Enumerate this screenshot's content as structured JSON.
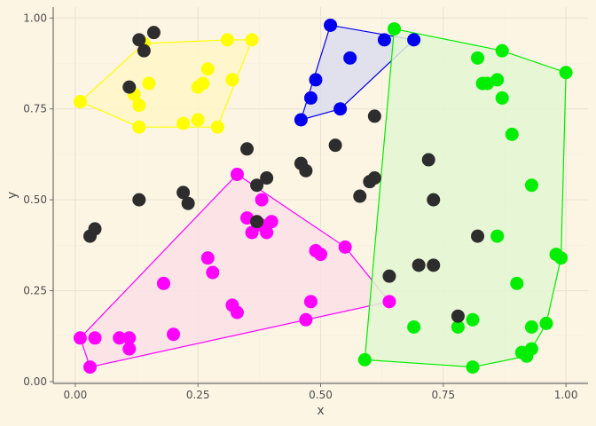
{
  "chart_data": {
    "type": "scatter",
    "title": "",
    "xlabel": "x",
    "ylabel": "y",
    "xlim": [
      -0.045,
      1.045
    ],
    "ylim": [
      -0.005,
      1.03
    ],
    "x_ticks": [
      0,
      0.25,
      0.5,
      0.75,
      1
    ],
    "x_tick_labels": [
      "0.00",
      "0.25",
      "0.50",
      "0.75",
      "1.00"
    ],
    "y_ticks": [
      0,
      0.25,
      0.5,
      0.75,
      1
    ],
    "y_tick_labels": [
      "0.00",
      "0.25",
      "0.50",
      "0.75",
      "1.00"
    ],
    "grid": true,
    "legend": "none",
    "colors": {
      "panel_background": "#fdf5e4",
      "grid_major": "#ebe3d2",
      "grid_minor": "#f5edde",
      "axis_line": "#6e6e6e",
      "text": "#4d4d4d"
    },
    "series": [
      {
        "color": "#ffff00",
        "fill": "#fff6c8",
        "hull": true,
        "points": [
          [
            0.01,
            0.77
          ],
          [
            0.14,
            0.93
          ],
          [
            0.12,
            0.79
          ],
          [
            0.13,
            0.76
          ],
          [
            0.13,
            0.7
          ],
          [
            0.15,
            0.82
          ],
          [
            0.22,
            0.71
          ],
          [
            0.25,
            0.72
          ],
          [
            0.25,
            0.81
          ],
          [
            0.26,
            0.82
          ],
          [
            0.27,
            0.86
          ],
          [
            0.29,
            0.7
          ],
          [
            0.31,
            0.94
          ],
          [
            0.32,
            0.83
          ],
          [
            0.36,
            0.94
          ]
        ]
      },
      {
        "color": "#0000ee",
        "fill": "#dcdcee",
        "hull": true,
        "points": [
          [
            0.46,
            0.72
          ],
          [
            0.48,
            0.78
          ],
          [
            0.49,
            0.83
          ],
          [
            0.52,
            0.98
          ],
          [
            0.54,
            0.75
          ],
          [
            0.56,
            0.89
          ],
          [
            0.63,
            0.94
          ],
          [
            0.69,
            0.94
          ]
        ]
      },
      {
        "color": "#ff00ff",
        "fill": "#fce0e6",
        "hull": true,
        "points": [
          [
            0.01,
            0.12
          ],
          [
            0.03,
            0.04
          ],
          [
            0.04,
            0.12
          ],
          [
            0.09,
            0.12
          ],
          [
            0.11,
            0.12
          ],
          [
            0.11,
            0.09
          ],
          [
            0.18,
            0.27
          ],
          [
            0.2,
            0.13
          ],
          [
            0.27,
            0.34
          ],
          [
            0.28,
            0.3
          ],
          [
            0.32,
            0.21
          ],
          [
            0.33,
            0.19
          ],
          [
            0.33,
            0.57
          ],
          [
            0.35,
            0.45
          ],
          [
            0.36,
            0.41
          ],
          [
            0.37,
            0.44
          ],
          [
            0.38,
            0.5
          ],
          [
            0.38,
            0.43
          ],
          [
            0.39,
            0.41
          ],
          [
            0.4,
            0.44
          ],
          [
            0.47,
            0.17
          ],
          [
            0.48,
            0.22
          ],
          [
            0.49,
            0.36
          ],
          [
            0.5,
            0.35
          ],
          [
            0.55,
            0.37
          ],
          [
            0.64,
            0.22
          ]
        ]
      },
      {
        "color": "#00ee00",
        "fill": "#e3f7d2",
        "hull": true,
        "points": [
          [
            0.59,
            0.06
          ],
          [
            0.65,
            0.97
          ],
          [
            0.69,
            0.15
          ],
          [
            0.78,
            0.15
          ],
          [
            0.81,
            0.17
          ],
          [
            0.81,
            0.04
          ],
          [
            0.82,
            0.89
          ],
          [
            0.83,
            0.82
          ],
          [
            0.84,
            0.82
          ],
          [
            0.86,
            0.83
          ],
          [
            0.86,
            0.4
          ],
          [
            0.87,
            0.78
          ],
          [
            0.87,
            0.91
          ],
          [
            0.89,
            0.68
          ],
          [
            0.9,
            0.27
          ],
          [
            0.91,
            0.08
          ],
          [
            0.92,
            0.07
          ],
          [
            0.93,
            0.09
          ],
          [
            0.93,
            0.54
          ],
          [
            0.93,
            0.15
          ],
          [
            0.96,
            0.16
          ],
          [
            0.98,
            0.35
          ],
          [
            0.99,
            0.34
          ],
          [
            1.0,
            0.85
          ]
        ]
      },
      {
        "color": "#2d2d2d",
        "hull": false,
        "points": [
          [
            0.03,
            0.4
          ],
          [
            0.04,
            0.42
          ],
          [
            0.11,
            0.81
          ],
          [
            0.13,
            0.94
          ],
          [
            0.13,
            0.5
          ],
          [
            0.14,
            0.91
          ],
          [
            0.16,
            0.96
          ],
          [
            0.22,
            0.52
          ],
          [
            0.23,
            0.49
          ],
          [
            0.35,
            0.64
          ],
          [
            0.37,
            0.54
          ],
          [
            0.37,
            0.44
          ],
          [
            0.39,
            0.56
          ],
          [
            0.46,
            0.6
          ],
          [
            0.47,
            0.58
          ],
          [
            0.53,
            0.65
          ],
          [
            0.58,
            0.51
          ],
          [
            0.6,
            0.55
          ],
          [
            0.61,
            0.56
          ],
          [
            0.61,
            0.73
          ],
          [
            0.64,
            0.29
          ],
          [
            0.7,
            0.32
          ],
          [
            0.72,
            0.61
          ],
          [
            0.73,
            0.32
          ],
          [
            0.73,
            0.5
          ],
          [
            0.78,
            0.18
          ],
          [
            0.82,
            0.4
          ]
        ]
      }
    ]
  }
}
